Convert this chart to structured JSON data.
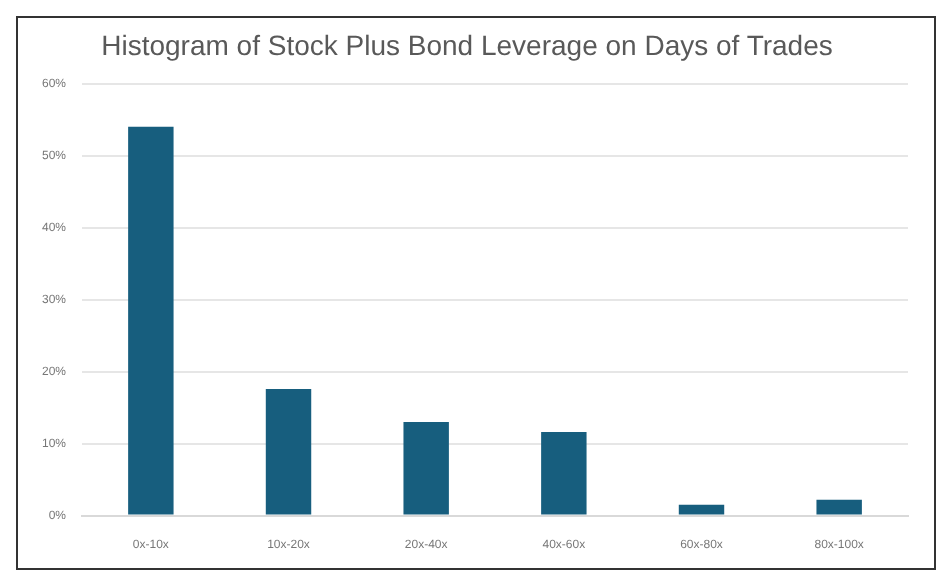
{
  "chart_data": {
    "type": "bar",
    "title": "Histogram of Stock Plus Bond Leverage on Days of Trades",
    "categories": [
      "0x-10x",
      "10x-20x",
      "20x-40x",
      "40x-60x",
      "60x-80x",
      "80x-100x"
    ],
    "values": [
      54.0,
      17.6,
      13.0,
      11.6,
      1.5,
      2.2
    ],
    "color": "#175e7e",
    "ylim": [
      0,
      60
    ],
    "yticks": [
      {
        "value": 0,
        "label": "0%"
      },
      {
        "value": 10,
        "label": "10%"
      },
      {
        "value": 20,
        "label": "20%"
      },
      {
        "value": 30,
        "label": "30%"
      },
      {
        "value": 40,
        "label": "40%"
      },
      {
        "value": 50,
        "label": "50%"
      },
      {
        "value": 60,
        "label": "60%"
      }
    ],
    "grid": "y"
  }
}
